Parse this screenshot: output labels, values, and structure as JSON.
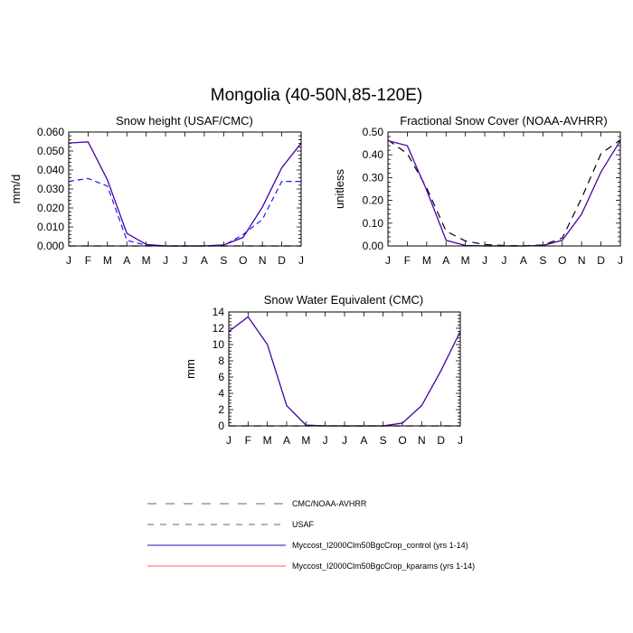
{
  "figure": {
    "title": "Mongolia (40-50N,85-120E)"
  },
  "colors": {
    "control": "#3a00b0",
    "kparams": "#ff6060",
    "usaf": "#1a1aff",
    "cmc_noaa": "#000000",
    "legend_dash_gray": "#666666"
  },
  "legend": {
    "entries": [
      {
        "label": "CMC/NOAA-AVHRR",
        "style": "long-dash",
        "color": "#666666"
      },
      {
        "label": "USAF",
        "style": "dash",
        "color": "#666666"
      },
      {
        "label": "Myccost_I2000Clm50BgcCrop_control (yrs 1-14)",
        "style": "solid",
        "color": "#3a00b0"
      },
      {
        "label": "Myccost_I2000Clm50BgcCrop_kparams (yrs 1-14)",
        "style": "solid",
        "color": "#ff6060"
      }
    ]
  },
  "chart_data": [
    {
      "type": "line",
      "title": "Snow height (USAF/CMC)",
      "xlabel": "",
      "ylabel": "mm/d",
      "categories": [
        "J",
        "F",
        "M",
        "A",
        "M",
        "J",
        "J",
        "A",
        "S",
        "O",
        "N",
        "D",
        "J"
      ],
      "ylim": [
        0,
        0.06
      ],
      "yticks": [
        "0.000",
        "0.010",
        "0.020",
        "0.030",
        "0.040",
        "0.050",
        "0.060"
      ],
      "grid": false,
      "series": [
        {
          "name": "USAF",
          "style": "dash",
          "color": "#1a1aff",
          "values": [
            0.034,
            0.0355,
            0.0315,
            0.003,
            0.0003,
            0.0,
            0.0,
            0.0,
            0.0002,
            0.006,
            0.014,
            0.034,
            0.034
          ]
        },
        {
          "name": "CMC/NOAA-AVHRR",
          "style": "long-dash",
          "color": "#000000",
          "values": [
            0,
            0,
            0,
            0,
            0,
            0,
            0,
            0,
            0,
            0,
            0,
            0,
            0
          ]
        },
        {
          "name": "Myccost_I2000Clm50BgcCrop_kparams (yrs 1-14)",
          "style": "solid",
          "color": "#ff6060",
          "values": [
            0.0542,
            0.0548,
            0.0348,
            0.0066,
            0.0008,
            0.0,
            0.0,
            0.0,
            0.0005,
            0.0045,
            0.0205,
            0.0412,
            0.0542
          ]
        },
        {
          "name": "Myccost_I2000Clm50BgcCrop_control (yrs 1-14)",
          "style": "solid",
          "color": "#3a00b0",
          "values": [
            0.0542,
            0.0548,
            0.0348,
            0.0066,
            0.0008,
            0.0,
            0.0,
            0.0,
            0.0005,
            0.0045,
            0.0205,
            0.0412,
            0.0542
          ]
        }
      ]
    },
    {
      "type": "line",
      "title": "Fractional Snow Cover (NOAA-AVHRR)",
      "xlabel": "",
      "ylabel": "unitless",
      "categories": [
        "J",
        "F",
        "M",
        "A",
        "M",
        "J",
        "J",
        "A",
        "S",
        "O",
        "N",
        "D",
        "J"
      ],
      "ylim": [
        0,
        0.5
      ],
      "yticks": [
        "0.00",
        "0.10",
        "0.20",
        "0.30",
        "0.40",
        "0.50"
      ],
      "grid": false,
      "series": [
        {
          "name": "CMC/NOAA-AVHRR",
          "style": "long-dash",
          "color": "#000000",
          "values": [
            0.465,
            0.405,
            0.255,
            0.065,
            0.022,
            0.006,
            0.002,
            0.001,
            0.004,
            0.035,
            0.21,
            0.405,
            0.465
          ]
        },
        {
          "name": "Myccost_I2000Clm50BgcCrop_kparams (yrs 1-14)",
          "style": "solid",
          "color": "#ff6060",
          "values": [
            0.462,
            0.44,
            0.245,
            0.025,
            0.002,
            0.0,
            0.0,
            0.0,
            0.002,
            0.025,
            0.14,
            0.325,
            0.462
          ]
        },
        {
          "name": "Myccost_I2000Clm50BgcCrop_control (yrs 1-14)",
          "style": "solid",
          "color": "#3a00b0",
          "values": [
            0.462,
            0.44,
            0.245,
            0.025,
            0.002,
            0.0,
            0.0,
            0.0,
            0.002,
            0.025,
            0.14,
            0.325,
            0.462
          ]
        }
      ]
    },
    {
      "type": "line",
      "title": "Snow Water Equivalent (CMC)",
      "xlabel": "",
      "ylabel": "mm",
      "categories": [
        "J",
        "F",
        "M",
        "A",
        "M",
        "J",
        "J",
        "A",
        "S",
        "O",
        "N",
        "D",
        "J"
      ],
      "ylim": [
        0,
        14
      ],
      "yticks": [
        "0",
        "2",
        "4",
        "6",
        "8",
        "10",
        "12",
        "14"
      ],
      "grid": false,
      "series": [
        {
          "name": "CMC/NOAA-AVHRR",
          "style": "long-dash",
          "color": "#000000",
          "values": [
            0,
            0,
            0,
            0,
            0,
            0,
            0,
            0,
            0,
            0,
            0,
            0,
            0
          ]
        },
        {
          "name": "Myccost_I2000Clm50BgcCrop_kparams (yrs 1-14)",
          "style": "solid",
          "color": "#ff6060",
          "values": [
            11.6,
            13.4,
            10.0,
            2.5,
            0.1,
            0.0,
            0.0,
            0.0,
            0.0,
            0.35,
            2.5,
            6.8,
            11.6
          ]
        },
        {
          "name": "Myccost_I2000Clm50BgcCrop_control (yrs 1-14)",
          "style": "solid",
          "color": "#3a00b0",
          "values": [
            11.6,
            13.4,
            10.0,
            2.5,
            0.1,
            0.0,
            0.0,
            0.0,
            0.0,
            0.35,
            2.5,
            6.8,
            11.6
          ]
        }
      ]
    }
  ]
}
